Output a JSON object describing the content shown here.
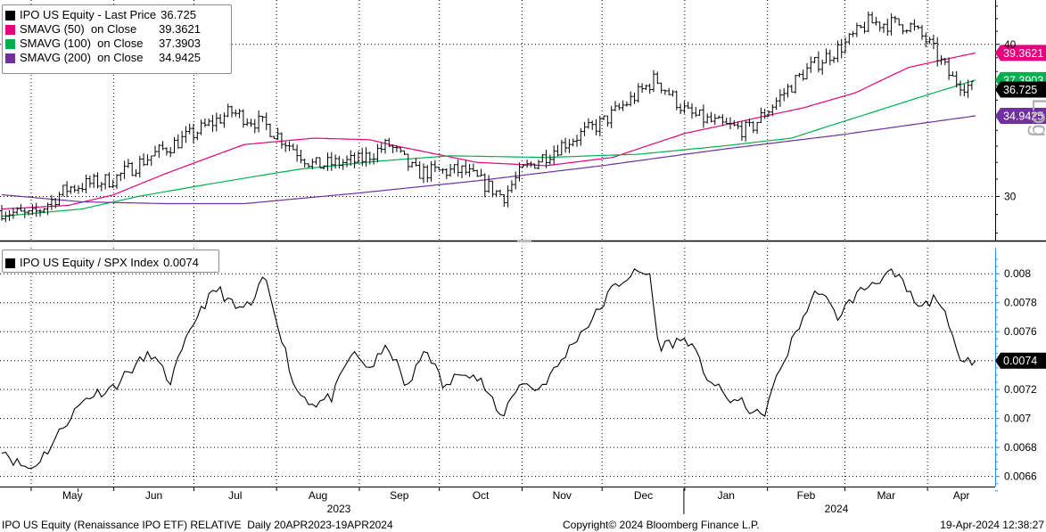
{
  "upper_legend": [
    {
      "name": "IPO US Equity - Last Price",
      "value": "36.725",
      "color": "#000000"
    },
    {
      "name": "SMAVG (50)  on Close",
      "value": "39.3621",
      "color": "#e6007e"
    },
    {
      "name": "SMAVG (100)  on Close",
      "value": "37.3903",
      "color": "#00b050"
    },
    {
      "name": "SMAVG (200)  on Close",
      "value": "34.9425",
      "color": "#7030a0"
    }
  ],
  "lower_legend": {
    "name": "IPO US Equity / SPX Index",
    "value": "0.0074",
    "color": "#000000"
  },
  "footer": {
    "left": "IPO US Equity (Renaissance IPO ETF) RELATIVE  Daily 20APR2023-19APR2024",
    "center": "Copyright© 2024 Bloomberg Finance L.P.",
    "right": "19-Apr-2024 12:38:27"
  },
  "chart_data": [
    {
      "type": "line",
      "scale": "log",
      "ylim": [
        27.6,
        43.5
      ],
      "y_ticks": [
        "40",
        "30"
      ],
      "right_axis_label": "Log",
      "x_months": [
        "May",
        "Jun",
        "Jul",
        "Aug",
        "Sep",
        "Oct",
        "Nov",
        "Dec",
        "Jan",
        "Feb",
        "Mar",
        "Apr"
      ],
      "x_years": [
        "2023",
        "2024"
      ],
      "series": [
        {
          "name": "IPO US Equity - Last Price",
          "style": "ohlc-bars",
          "color": "#000000",
          "dates": [
            "2023-04-20",
            "2023-05-01",
            "2023-05-15",
            "2023-06-01",
            "2023-06-15",
            "2023-07-01",
            "2023-07-15",
            "2023-07-28",
            "2023-08-15",
            "2023-09-01",
            "2023-09-12",
            "2023-09-22",
            "2023-10-10",
            "2023-10-25",
            "2023-11-01",
            "2023-11-15",
            "2023-12-01",
            "2023-12-15",
            "2023-12-21",
            "2024-01-02",
            "2024-01-15",
            "2024-01-25",
            "2024-02-01",
            "2024-02-15",
            "2024-03-01",
            "2024-03-10",
            "2024-03-25",
            "2024-04-01",
            "2024-04-10",
            "2024-04-19"
          ],
          "values": [
            29.2,
            28.9,
            30.5,
            31.0,
            32.4,
            33.8,
            35.2,
            34.3,
            31.8,
            32.1,
            33.1,
            31.4,
            31.5,
            30.0,
            31.5,
            33.0,
            34.5,
            36.5,
            37.5,
            35.1,
            34.3,
            34.0,
            35.3,
            38.0,
            40.0,
            41.7,
            41.5,
            40.2,
            37.5,
            36.725
          ],
          "last": 36.725
        },
        {
          "name": "SMAVG (50)  on Close",
          "color": "#e6007e",
          "dates": [
            "2023-04-20",
            "2023-05-15",
            "2023-06-01",
            "2023-06-20",
            "2023-07-20",
            "2023-08-15",
            "2023-09-05",
            "2023-09-15",
            "2023-10-15",
            "2023-11-10",
            "2023-12-05",
            "2024-01-01",
            "2024-01-20",
            "2024-02-15",
            "2024-03-05",
            "2024-03-25",
            "2024-04-19"
          ],
          "values": [
            29.3,
            29.5,
            30.1,
            31.3,
            33.1,
            33.5,
            33.4,
            33.0,
            32.0,
            31.8,
            32.3,
            33.8,
            34.5,
            35.5,
            36.5,
            38.3,
            39.3621
          ],
          "last": 39.3621
        },
        {
          "name": "SMAVG (100)  on Close",
          "color": "#00b050",
          "dates": [
            "2023-04-20",
            "2023-05-20",
            "2023-06-10",
            "2023-07-10",
            "2023-08-10",
            "2023-09-10",
            "2023-10-05",
            "2023-11-10",
            "2023-12-15",
            "2024-01-15",
            "2024-02-10",
            "2024-03-10",
            "2024-04-19"
          ],
          "values": [
            28.9,
            29.3,
            30.0,
            30.8,
            31.6,
            32.1,
            32.4,
            32.3,
            32.5,
            33.0,
            33.5,
            35.1,
            37.3903
          ],
          "last": 37.3903
        },
        {
          "name": "SMAVG (200)  on Close",
          "color": "#7030a0",
          "dates": [
            "2023-04-20",
            "2023-05-20",
            "2023-06-20",
            "2023-07-20",
            "2023-09-01",
            "2023-10-15",
            "2023-12-01",
            "2024-01-15",
            "2024-02-28",
            "2024-04-19"
          ],
          "values": [
            30.1,
            29.7,
            29.6,
            29.6,
            30.2,
            30.9,
            31.8,
            32.8,
            33.7,
            34.9425
          ],
          "last": 34.9425
        }
      ]
    },
    {
      "type": "line",
      "ylim": [
        0.00653,
        0.00818
      ],
      "y_ticks": [
        "0.0066",
        "0.0068",
        "0.007",
        "0.0072",
        "0.0074",
        "0.0076",
        "0.0078",
        "0.008"
      ],
      "series": [
        {
          "name": "IPO US Equity / SPX Index",
          "color": "#000000",
          "dates": [
            "2023-04-20",
            "2023-04-25",
            "2023-05-01",
            "2023-05-08",
            "2023-05-15",
            "2023-05-22",
            "2023-06-01",
            "2023-06-08",
            "2023-06-15",
            "2023-06-22",
            "2023-07-03",
            "2023-07-10",
            "2023-07-17",
            "2023-07-24",
            "2023-07-27",
            "2023-08-01",
            "2023-08-08",
            "2023-08-15",
            "2023-08-22",
            "2023-08-29",
            "2023-09-05",
            "2023-09-12",
            "2023-09-19",
            "2023-09-26",
            "2023-10-03",
            "2023-10-10",
            "2023-10-17",
            "2023-10-24",
            "2023-10-31",
            "2023-11-07",
            "2023-11-14",
            "2023-11-21",
            "2023-11-28",
            "2023-12-05",
            "2023-12-12",
            "2023-12-19",
            "2023-12-22",
            "2024-01-02",
            "2024-01-09",
            "2024-01-16",
            "2024-01-23",
            "2024-01-30",
            "2024-02-06",
            "2024-02-13",
            "2024-02-20",
            "2024-02-27",
            "2024-03-05",
            "2024-03-12",
            "2024-03-18",
            "2024-03-22",
            "2024-03-29",
            "2024-04-05",
            "2024-04-12",
            "2024-04-19"
          ],
          "values": [
            0.0068,
            0.0067,
            0.00665,
            0.0068,
            0.007,
            0.00715,
            0.00722,
            0.00735,
            0.00745,
            0.00725,
            0.00775,
            0.0079,
            0.00775,
            0.0078,
            0.008,
            0.0077,
            0.0072,
            0.0071,
            0.00715,
            0.00745,
            0.00735,
            0.0075,
            0.0072,
            0.0075,
            0.0072,
            0.00735,
            0.00725,
            0.007,
            0.00725,
            0.0072,
            0.00735,
            0.00755,
            0.0077,
            0.0079,
            0.008,
            0.008,
            0.0075,
            0.00755,
            0.0073,
            0.00715,
            0.0071,
            0.007,
            0.00735,
            0.00765,
            0.0079,
            0.0077,
            0.00785,
            0.00795,
            0.008,
            0.00795,
            0.00775,
            0.00785,
            0.00745,
            0.0074
          ],
          "last": 0.0074
        }
      ]
    }
  ]
}
